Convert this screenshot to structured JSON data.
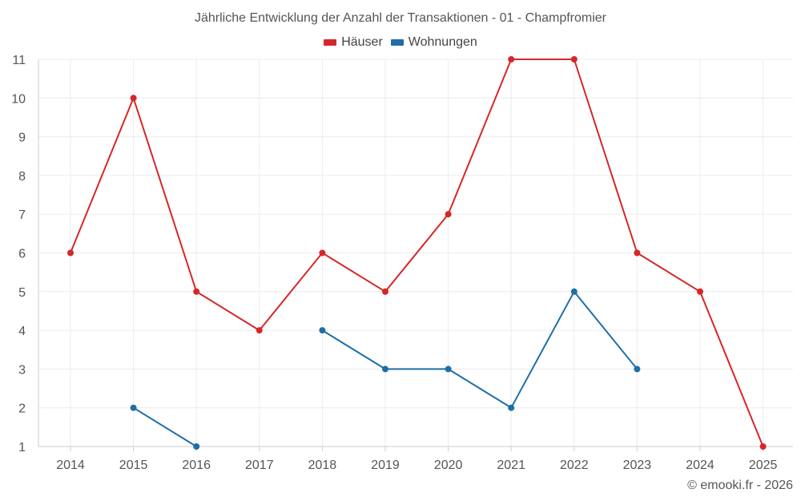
{
  "chart_data": {
    "type": "line",
    "title": "Jährliche Entwicklung der Anzahl der Transaktionen - 01 - Champfromier",
    "xlabel": "",
    "ylabel": "",
    "categories": [
      "2014",
      "2015",
      "2016",
      "2017",
      "2018",
      "2019",
      "2020",
      "2021",
      "2022",
      "2023",
      "2024",
      "2025"
    ],
    "ylim": [
      1,
      11
    ],
    "yticks": [
      1,
      2,
      3,
      4,
      5,
      6,
      7,
      8,
      9,
      10,
      11
    ],
    "grid": true,
    "legend_position": "top-center",
    "series": [
      {
        "name": "Häuser",
        "color": "#d62728",
        "values": [
          6,
          10,
          5,
          4,
          6,
          5,
          7,
          11,
          11,
          6,
          5,
          1
        ]
      },
      {
        "name": "Wohnungen",
        "color": "#1f6fa6",
        "values": [
          null,
          2,
          1,
          null,
          4,
          3,
          3,
          2,
          5,
          3,
          null,
          null
        ]
      }
    ]
  },
  "credit": "© emooki.fr - 2026"
}
